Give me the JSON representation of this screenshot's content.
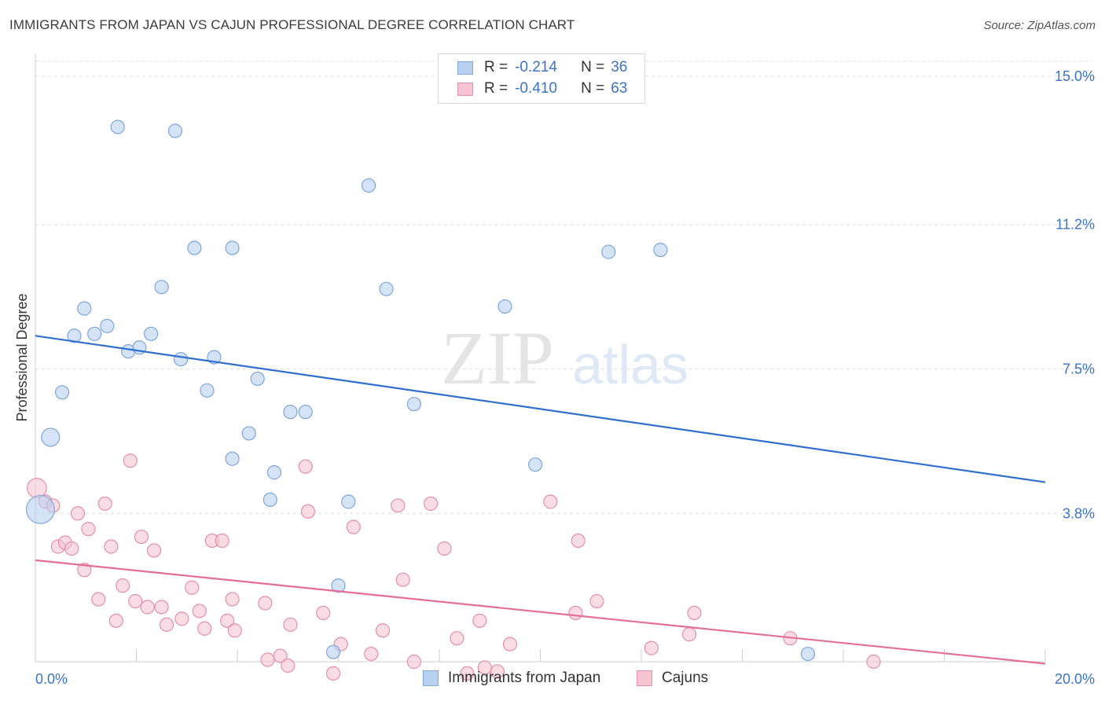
{
  "title": "IMMIGRANTS FROM JAPAN VS CAJUN PROFESSIONAL DEGREE CORRELATION CHART",
  "source": "Source: ZipAtlas.com",
  "watermark": {
    "zip": "ZIP",
    "atlas": "atlas"
  },
  "colors": {
    "blue_fill": "#b9d1f1",
    "blue_stroke": "#7ea6dc",
    "blue_line": "#2f6fcf",
    "pink_fill": "#f7c4d3",
    "pink_stroke": "#e58fab",
    "pink_line": "#e46e97",
    "value_text": "#3b74c9",
    "grid": "#dddddd"
  },
  "legend": {
    "r_label": "R =",
    "n_label": "N =",
    "series": [
      {
        "r": "-0.214",
        "n": "36"
      },
      {
        "r": "-0.410",
        "n": "63"
      }
    ]
  },
  "chart_data": {
    "type": "scatter",
    "title": "IMMIGRANTS FROM JAPAN VS CAJUN PROFESSIONAL DEGREE CORRELATION CHART",
    "xlabel": "",
    "ylabel": "Professional Degree",
    "xlim": [
      0,
      20
    ],
    "ylim": [
      0,
      15.7
    ],
    "x_tick_labels": [
      "0.0%",
      "20.0%"
    ],
    "y_ticks": [
      3.8,
      7.5,
      11.2,
      15.0
    ],
    "y_tick_labels": [
      "3.8%",
      "7.5%",
      "11.2%",
      "15.0%"
    ],
    "series": [
      {
        "name": "Immigrants from Japan",
        "r": -0.214,
        "n": 36,
        "trend": {
          "x": [
            0,
            20
          ],
          "y": [
            8.35,
            4.6
          ]
        },
        "points": [
          {
            "x": 1.63,
            "y": 13.7,
            "s": 1
          },
          {
            "x": 2.77,
            "y": 13.6,
            "s": 1
          },
          {
            "x": 6.6,
            "y": 12.2,
            "s": 1
          },
          {
            "x": 3.15,
            "y": 10.6,
            "s": 1
          },
          {
            "x": 3.9,
            "y": 10.6,
            "s": 1
          },
          {
            "x": 11.35,
            "y": 10.5,
            "s": 1
          },
          {
            "x": 12.38,
            "y": 10.55,
            "s": 1
          },
          {
            "x": 2.5,
            "y": 9.6,
            "s": 1
          },
          {
            "x": 6.95,
            "y": 9.55,
            "s": 1
          },
          {
            "x": 0.97,
            "y": 9.05,
            "s": 1
          },
          {
            "x": 9.3,
            "y": 9.1,
            "s": 1
          },
          {
            "x": 1.42,
            "y": 8.6,
            "s": 1
          },
          {
            "x": 0.77,
            "y": 8.35,
            "s": 1
          },
          {
            "x": 1.17,
            "y": 8.4,
            "s": 1
          },
          {
            "x": 2.29,
            "y": 8.4,
            "s": 1
          },
          {
            "x": 1.84,
            "y": 7.95,
            "s": 1
          },
          {
            "x": 2.06,
            "y": 8.05,
            "s": 1
          },
          {
            "x": 2.88,
            "y": 7.75,
            "s": 1
          },
          {
            "x": 3.54,
            "y": 7.8,
            "s": 1
          },
          {
            "x": 4.4,
            "y": 7.25,
            "s": 1
          },
          {
            "x": 0.53,
            "y": 6.9,
            "s": 1
          },
          {
            "x": 3.4,
            "y": 6.95,
            "s": 1
          },
          {
            "x": 7.5,
            "y": 6.6,
            "s": 1
          },
          {
            "x": 5.05,
            "y": 6.4,
            "s": 1
          },
          {
            "x": 5.35,
            "y": 6.4,
            "s": 1
          },
          {
            "x": 0.3,
            "y": 5.75,
            "s": 1.35
          },
          {
            "x": 4.23,
            "y": 5.85,
            "s": 1
          },
          {
            "x": 3.9,
            "y": 5.2,
            "s": 1
          },
          {
            "x": 9.9,
            "y": 5.05,
            "s": 1
          },
          {
            "x": 4.73,
            "y": 4.85,
            "s": 1
          },
          {
            "x": 4.65,
            "y": 4.15,
            "s": 1
          },
          {
            "x": 6.2,
            "y": 4.1,
            "s": 1
          },
          {
            "x": 0.1,
            "y": 3.9,
            "s": 2.1
          },
          {
            "x": 6.0,
            "y": 1.95,
            "s": 1
          },
          {
            "x": 5.9,
            "y": 0.25,
            "s": 1
          },
          {
            "x": 15.3,
            "y": 0.2,
            "s": 1
          }
        ]
      },
      {
        "name": "Cajuns",
        "r": -0.41,
        "n": 63,
        "trend": {
          "x": [
            0,
            20
          ],
          "y": [
            2.6,
            -0.05
          ]
        },
        "points": [
          {
            "x": 0.03,
            "y": 4.45,
            "s": 1.45
          },
          {
            "x": 0.2,
            "y": 4.1,
            "s": 1
          },
          {
            "x": 0.35,
            "y": 4.0,
            "s": 1
          },
          {
            "x": 1.88,
            "y": 5.15,
            "s": 1
          },
          {
            "x": 5.35,
            "y": 5.0,
            "s": 1
          },
          {
            "x": 1.38,
            "y": 4.05,
            "s": 1
          },
          {
            "x": 0.84,
            "y": 3.8,
            "s": 1
          },
          {
            "x": 5.4,
            "y": 3.85,
            "s": 1
          },
          {
            "x": 7.18,
            "y": 4.0,
            "s": 1
          },
          {
            "x": 7.83,
            "y": 4.05,
            "s": 1
          },
          {
            "x": 10.2,
            "y": 4.1,
            "s": 1
          },
          {
            "x": 6.3,
            "y": 3.45,
            "s": 1
          },
          {
            "x": 1.05,
            "y": 3.4,
            "s": 1
          },
          {
            "x": 2.1,
            "y": 3.2,
            "s": 1
          },
          {
            "x": 0.45,
            "y": 2.95,
            "s": 1
          },
          {
            "x": 0.59,
            "y": 3.05,
            "s": 1
          },
          {
            "x": 0.72,
            "y": 2.9,
            "s": 1
          },
          {
            "x": 1.5,
            "y": 2.95,
            "s": 1
          },
          {
            "x": 2.35,
            "y": 2.85,
            "s": 1
          },
          {
            "x": 3.5,
            "y": 3.1,
            "s": 1
          },
          {
            "x": 3.7,
            "y": 3.1,
            "s": 1
          },
          {
            "x": 8.1,
            "y": 2.9,
            "s": 1
          },
          {
            "x": 10.75,
            "y": 3.1,
            "s": 1
          },
          {
            "x": 0.97,
            "y": 2.35,
            "s": 1
          },
          {
            "x": 1.73,
            "y": 1.95,
            "s": 1
          },
          {
            "x": 7.28,
            "y": 2.1,
            "s": 1
          },
          {
            "x": 1.25,
            "y": 1.6,
            "s": 1
          },
          {
            "x": 3.1,
            "y": 1.9,
            "s": 1
          },
          {
            "x": 1.98,
            "y": 1.55,
            "s": 1
          },
          {
            "x": 2.22,
            "y": 1.4,
            "s": 1
          },
          {
            "x": 2.5,
            "y": 1.4,
            "s": 1
          },
          {
            "x": 3.9,
            "y": 1.6,
            "s": 1
          },
          {
            "x": 4.55,
            "y": 1.5,
            "s": 1
          },
          {
            "x": 11.12,
            "y": 1.55,
            "s": 1
          },
          {
            "x": 1.6,
            "y": 1.05,
            "s": 1
          },
          {
            "x": 3.25,
            "y": 1.3,
            "s": 1
          },
          {
            "x": 5.7,
            "y": 1.25,
            "s": 1
          },
          {
            "x": 10.7,
            "y": 1.25,
            "s": 1
          },
          {
            "x": 2.6,
            "y": 0.95,
            "s": 1
          },
          {
            "x": 2.9,
            "y": 1.1,
            "s": 1
          },
          {
            "x": 3.35,
            "y": 0.85,
            "s": 1
          },
          {
            "x": 3.8,
            "y": 1.05,
            "s": 1
          },
          {
            "x": 5.05,
            "y": 0.95,
            "s": 1
          },
          {
            "x": 8.8,
            "y": 1.05,
            "s": 1
          },
          {
            "x": 3.95,
            "y": 0.8,
            "s": 1
          },
          {
            "x": 6.88,
            "y": 0.8,
            "s": 1
          },
          {
            "x": 8.35,
            "y": 0.6,
            "s": 1
          },
          {
            "x": 6.05,
            "y": 0.45,
            "s": 1
          },
          {
            "x": 9.4,
            "y": 0.45,
            "s": 1
          },
          {
            "x": 12.95,
            "y": 0.7,
            "s": 1
          },
          {
            "x": 14.95,
            "y": 0.6,
            "s": 1
          },
          {
            "x": 12.2,
            "y": 0.35,
            "s": 1
          },
          {
            "x": 6.65,
            "y": 0.2,
            "s": 1
          },
          {
            "x": 4.6,
            "y": 0.05,
            "s": 1
          },
          {
            "x": 4.85,
            "y": 0.15,
            "s": 1
          },
          {
            "x": 7.5,
            "y": 0.0,
            "s": 1
          },
          {
            "x": 16.6,
            "y": 0.0,
            "s": 1
          },
          {
            "x": 5.0,
            "y": -0.1,
            "s": 1
          },
          {
            "x": 8.9,
            "y": -0.15,
            "s": 1
          },
          {
            "x": 5.9,
            "y": -0.3,
            "s": 1
          },
          {
            "x": 8.55,
            "y": -0.3,
            "s": 1
          },
          {
            "x": 9.15,
            "y": -0.25,
            "s": 1
          },
          {
            "x": 13.05,
            "y": 1.25,
            "s": 1
          }
        ]
      }
    ]
  }
}
